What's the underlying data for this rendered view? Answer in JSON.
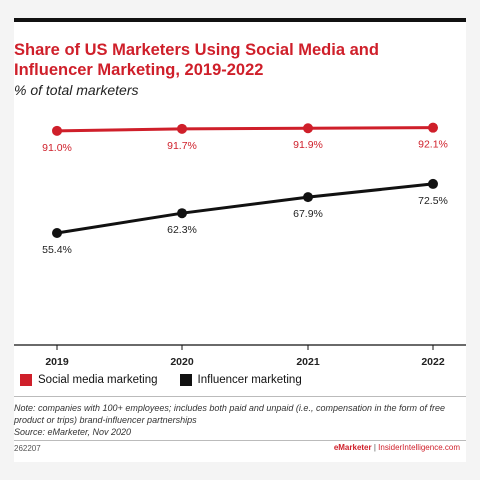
{
  "chart_data": {
    "type": "line",
    "title": "Share of US Marketers Using Social Media and Influencer Marketing, 2019-2022",
    "subtitle": "% of total marketers",
    "categories": [
      "2019",
      "2020",
      "2021",
      "2022"
    ],
    "ylim": [
      0,
      100
    ],
    "grid": false,
    "legend_position": "bottom",
    "series": [
      {
        "name": "Social media marketing",
        "color": "#cf1f2a",
        "values": [
          91.0,
          91.7,
          91.9,
          92.1
        ],
        "labels": [
          "91.0%",
          "91.7%",
          "91.9%",
          "92.1%"
        ]
      },
      {
        "name": "Influencer marketing",
        "color": "#111111",
        "values": [
          55.4,
          62.3,
          67.9,
          72.5
        ],
        "labels": [
          "55.4%",
          "62.3%",
          "67.9%",
          "72.5%"
        ]
      }
    ]
  },
  "footer": {
    "note": "Note: companies with 100+ employees; includes both paid and unpaid (i.e., compensation in the form of free product or trips) brand-influencer partnerships",
    "source": "Source: eMarketer, Nov 2020",
    "chart_id": "262207",
    "brand": "eMarketer",
    "separator": "|",
    "site": "InsiderIntelligence.com"
  }
}
